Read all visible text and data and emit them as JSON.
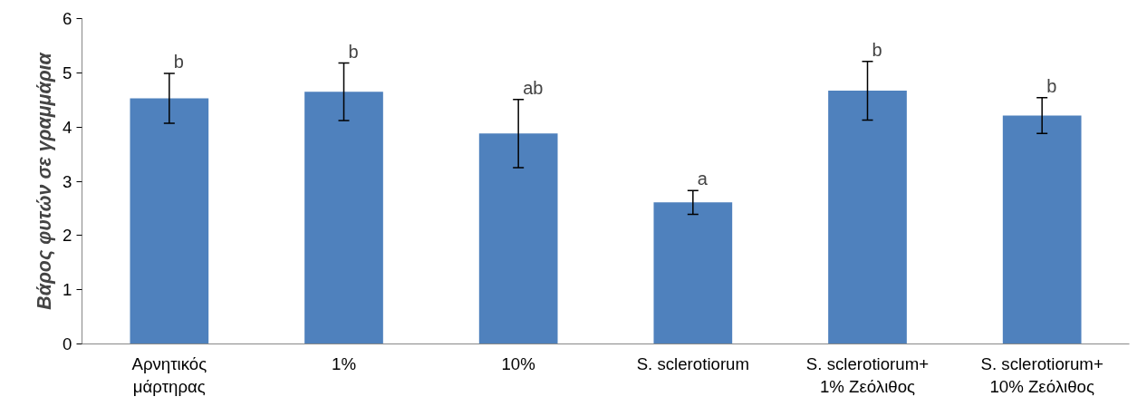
{
  "chart_data": {
    "type": "bar",
    "ylabel": "Βάρος φυτών σε γραμμάρια",
    "categories": [
      "Αρνητικός\nμάρτηρας",
      "1%",
      "10%",
      "S. sclerotiorum",
      "S. sclerotiorum+\n1% Ζεόλιθος",
      "S. sclerotiorum+\n10% Ζεόλιθος"
    ],
    "values": [
      4.53,
      4.65,
      3.88,
      2.61,
      4.67,
      4.21
    ],
    "errors": [
      0.46,
      0.53,
      0.63,
      0.22,
      0.54,
      0.33
    ],
    "color": "#4f81bd",
    "ylim": [
      0,
      6
    ],
    "yticks": [
      0,
      1,
      2,
      3,
      4,
      5,
      6
    ],
    "grid": false,
    "annotations": [
      {
        "text": "b",
        "x": "Αρνητικός\nμάρτηρας",
        "y": 4.99
      },
      {
        "text": "b",
        "x": "1%",
        "y": 5.18
      },
      {
        "text": "ab",
        "x": "10%",
        "y": 4.51
      },
      {
        "text": "a",
        "x": "S. sclerotiorum",
        "y": 2.83
      },
      {
        "text": "b",
        "x": "S. sclerotiorum+\n1% Ζεόλιθος",
        "y": 5.21
      },
      {
        "text": "b",
        "x": "S. sclerotiorum+\n10% Ζεόλιθος",
        "y": 4.54
      }
    ]
  }
}
